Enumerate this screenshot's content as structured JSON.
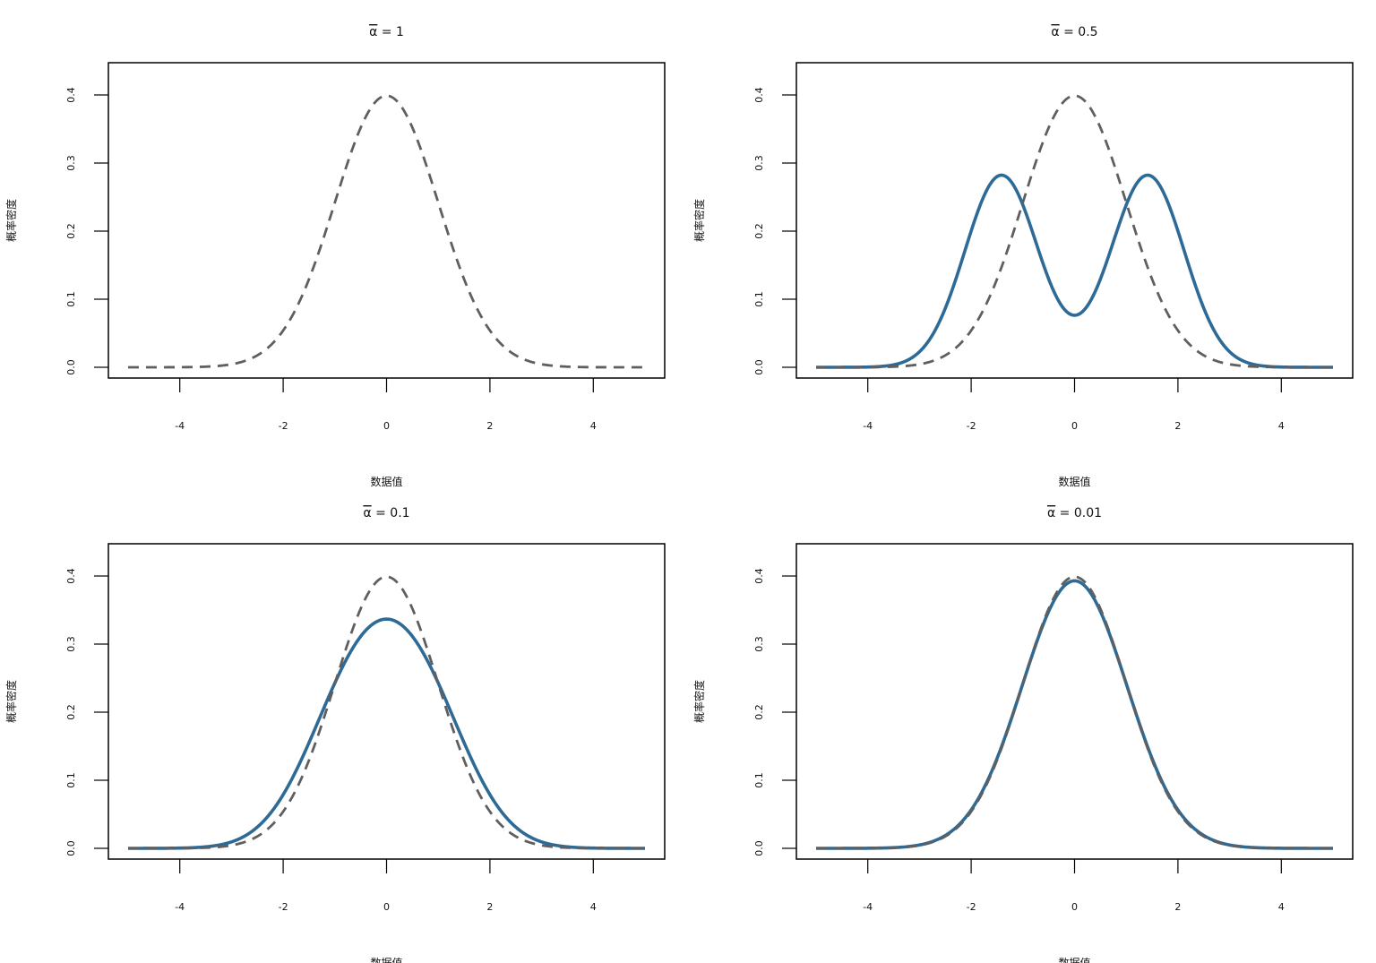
{
  "colors": {
    "mixture": "#2e6a96",
    "normal": "#5f5f5f",
    "background": "#ffffff"
  },
  "chart_data": [
    {
      "type": "line",
      "title": {
        "symbol": "α",
        "text": " = 1"
      },
      "xlabel": "数据值",
      "ylabel": "概率密度",
      "xlim": [
        -5,
        5
      ],
      "ylim": [
        0,
        0.42
      ],
      "xticks": [
        "-4",
        "-2",
        "0",
        "2",
        "4"
      ],
      "yticks": [
        "0.0",
        "0.1",
        "0.2",
        "0.3",
        "0.4"
      ],
      "series": [
        {
          "style": "solid",
          "color": "#2e6a96",
          "alpha": 1
        },
        {
          "style": "dashed",
          "color": "#5f5f5f",
          "formula": "standard normal"
        }
      ]
    },
    {
      "type": "line",
      "title": {
        "symbol": "α",
        "text": " = 0.5"
      },
      "xlabel": "数据值",
      "ylabel": "概率密度",
      "xlim": [
        -5,
        5
      ],
      "ylim": [
        0,
        0.42
      ],
      "xticks": [
        "-4",
        "-2",
        "0",
        "2",
        "4"
      ],
      "yticks": [
        "0.0",
        "0.1",
        "0.2",
        "0.3",
        "0.4"
      ],
      "series": [
        {
          "style": "solid",
          "color": "#2e6a96",
          "alpha": 0.5
        },
        {
          "style": "dashed",
          "color": "#5f5f5f",
          "formula": "standard normal"
        }
      ]
    },
    {
      "type": "line",
      "title": {
        "symbol": "α",
        "text": " = 0.1"
      },
      "xlabel": "数据值",
      "ylabel": "概率密度",
      "xlim": [
        -5,
        5
      ],
      "ylim": [
        0,
        0.42
      ],
      "xticks": [
        "-4",
        "-2",
        "0",
        "2",
        "4"
      ],
      "yticks": [
        "0.0",
        "0.1",
        "0.2",
        "0.3",
        "0.4"
      ],
      "series": [
        {
          "style": "solid",
          "color": "#2e6a96",
          "alpha": 0.1
        },
        {
          "style": "dashed",
          "color": "#5f5f5f",
          "formula": "standard normal"
        }
      ]
    },
    {
      "type": "line",
      "title": {
        "symbol": "α",
        "text": " = 0.01"
      },
      "xlabel": "数据值",
      "ylabel": "概率密度",
      "xlim": [
        -5,
        5
      ],
      "ylim": [
        0,
        0.42
      ],
      "xticks": [
        "-4",
        "-2",
        "0",
        "2",
        "4"
      ],
      "yticks": [
        "0.0",
        "0.1",
        "0.2",
        "0.3",
        "0.4"
      ],
      "series": [
        {
          "style": "solid",
          "color": "#2e6a96",
          "alpha": 0.01
        },
        {
          "style": "dashed",
          "color": "#5f5f5f",
          "formula": "standard normal"
        }
      ]
    }
  ]
}
